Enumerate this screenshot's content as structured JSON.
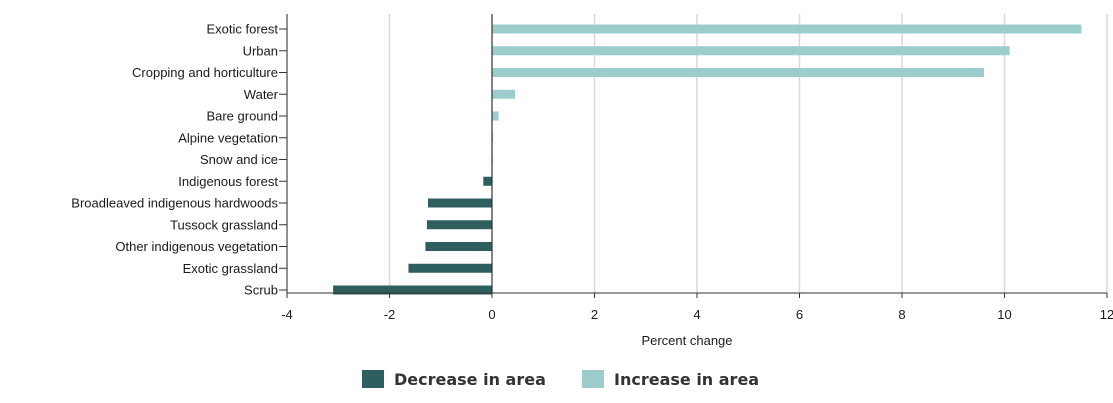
{
  "chart_data": {
    "type": "bar",
    "orientation": "horizontal",
    "categories": [
      "Exotic forest",
      "Urban",
      "Cropping and horticulture",
      "Water",
      "Bare ground",
      "Alpine vegetation",
      "Snow and ice",
      "Indigenous forest",
      "Broadleaved indigenous hardwoods",
      "Tussock grassland",
      "Other indigenous vegetation",
      "Exotic grassland",
      "Scrub"
    ],
    "values": [
      11.5,
      10.1,
      9.6,
      0.45,
      0.13,
      0.02,
      0.01,
      -0.17,
      -1.25,
      -1.27,
      -1.3,
      -1.63,
      -3.1
    ],
    "xlabel": "Percent change",
    "ylabel": "",
    "xlim": [
      -4,
      12
    ],
    "xticks": [
      "-4",
      "-2",
      "0",
      "2",
      "4",
      "6",
      "8",
      "10",
      "12"
    ],
    "grid": "vertical",
    "legend": {
      "position": "bottom-center",
      "items": [
        {
          "label": "Decrease in area",
          "color": "#2e5e5e"
        },
        {
          "label": "Increase in area",
          "color": "#9ccccc"
        }
      ]
    },
    "colors": {
      "decrease": "#2e5e5e",
      "increase": "#9ccccc",
      "grid": "#d9d9d9",
      "axis": "#333333"
    }
  }
}
